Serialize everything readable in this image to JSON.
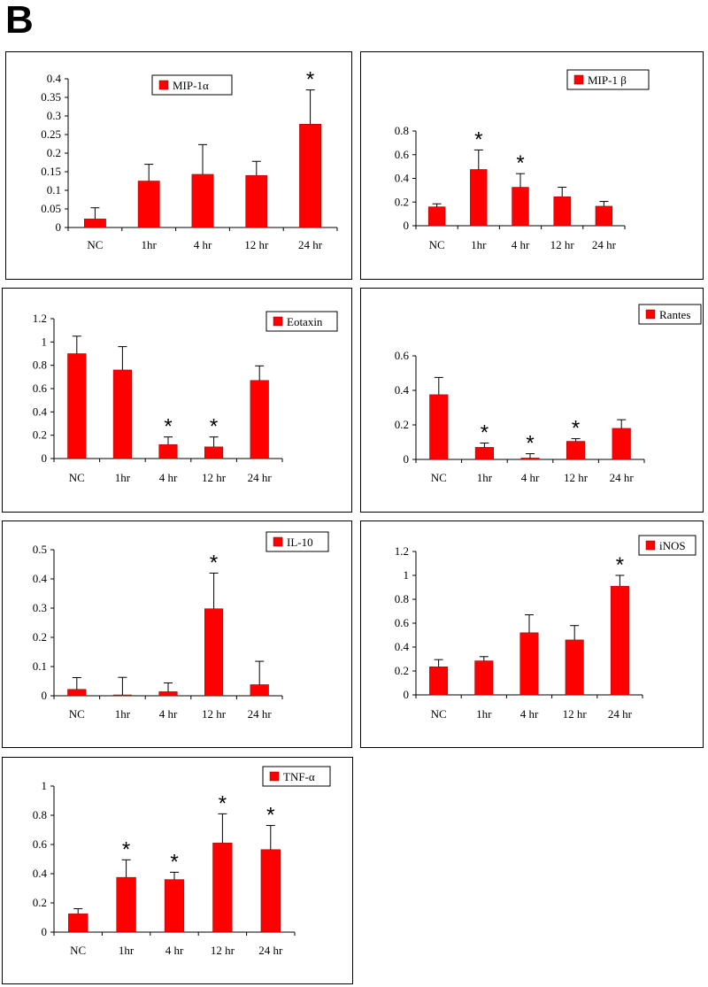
{
  "panel_label": "B",
  "colors": {
    "bar": "#ff0000",
    "bar_stroke": "#8b0000",
    "axis": "#000000"
  },
  "chart_data": [
    {
      "type": "bar",
      "legend": "MIP-1α",
      "categories": [
        "NC",
        "1hr",
        "4 hr",
        "12 hr",
        "24 hr"
      ],
      "values": [
        0.023,
        0.125,
        0.143,
        0.14,
        0.278
      ],
      "errors": [
        0.03,
        0.045,
        0.08,
        0.038,
        0.092
      ],
      "significant": [
        false,
        false,
        false,
        false,
        true
      ],
      "ylim": [
        0,
        0.4
      ],
      "yticks": [
        0,
        0.05,
        0.1,
        0.15,
        0.2,
        0.25,
        0.3,
        0.35,
        0.4
      ],
      "ytick_labels": [
        "0",
        "0.05",
        "0.1",
        "0.15",
        "0.2",
        "0.25",
        "0.3",
        "0.35",
        "0.4"
      ],
      "legend_position": "top-center"
    },
    {
      "type": "bar",
      "legend": "MIP-1 β",
      "categories": [
        "NC",
        "1hr",
        "4 hr",
        "12 hr",
        "24 hr"
      ],
      "values": [
        0.16,
        0.475,
        0.325,
        0.245,
        0.165
      ],
      "errors": [
        0.025,
        0.165,
        0.115,
        0.08,
        0.04
      ],
      "significant": [
        false,
        true,
        true,
        false,
        false
      ],
      "ylim": [
        0,
        0.8
      ],
      "yticks": [
        0,
        0.2,
        0.4,
        0.6,
        0.8
      ],
      "ytick_labels": [
        "0",
        "0.2",
        "0.4",
        "0.6",
        "0.8"
      ],
      "legend_position": "top-right"
    },
    {
      "type": "bar",
      "legend": "Eotaxin",
      "categories": [
        "NC",
        "1hr",
        "4 hr",
        "12 hr",
        "24 hr"
      ],
      "values": [
        0.9,
        0.76,
        0.12,
        0.1,
        0.67
      ],
      "errors": [
        0.15,
        0.2,
        0.065,
        0.085,
        0.125
      ],
      "significant": [
        false,
        false,
        true,
        true,
        false
      ],
      "ylim": [
        0,
        1.2
      ],
      "yticks": [
        0,
        0.2,
        0.4,
        0.6,
        0.8,
        1,
        1.2
      ],
      "ytick_labels": [
        "0",
        "0.2",
        "0.4",
        "0.6",
        "0.8",
        "1",
        "1.2"
      ],
      "legend_position": "top-right"
    },
    {
      "type": "bar",
      "legend": "Rantes",
      "categories": [
        "NC",
        "1hr",
        "4 hr",
        "12 hr",
        "24 hr"
      ],
      "values": [
        0.375,
        0.07,
        0.008,
        0.105,
        0.18
      ],
      "errors": [
        0.1,
        0.025,
        0.025,
        0.015,
        0.05
      ],
      "significant": [
        false,
        true,
        true,
        true,
        false
      ],
      "ylim": [
        0,
        0.6
      ],
      "yticks": [
        0,
        0.2,
        0.4,
        0.6
      ],
      "ytick_labels": [
        "0",
        "0.2",
        "0.4",
        "0.6"
      ],
      "legend_position": "top-right"
    },
    {
      "type": "bar",
      "legend": "IL-10",
      "categories": [
        "NC",
        "1hr",
        "4 hr",
        "12 hr",
        "24 hr"
      ],
      "values": [
        0.022,
        0.003,
        0.014,
        0.298,
        0.038
      ],
      "errors": [
        0.04,
        0.06,
        0.03,
        0.122,
        0.08
      ],
      "significant": [
        false,
        false,
        false,
        true,
        false
      ],
      "ylim": [
        0,
        0.5
      ],
      "yticks": [
        0,
        0.1,
        0.2,
        0.3,
        0.4,
        0.5
      ],
      "ytick_labels": [
        "0",
        "0.1",
        "0.2",
        "0.3",
        "0.4",
        "0.5"
      ],
      "legend_position": "top-right"
    },
    {
      "type": "bar",
      "legend": "iNOS",
      "categories": [
        "NC",
        "1hr",
        "4 hr",
        "12 hr",
        "24 hr"
      ],
      "values": [
        0.235,
        0.285,
        0.52,
        0.46,
        0.91
      ],
      "errors": [
        0.06,
        0.035,
        0.15,
        0.12,
        0.09
      ],
      "significant": [
        false,
        false,
        false,
        false,
        true
      ],
      "ylim": [
        0,
        1.2
      ],
      "yticks": [
        0,
        0.2,
        0.4,
        0.6,
        0.8,
        1,
        1.2
      ],
      "ytick_labels": [
        "0",
        "0.2",
        "0.4",
        "0.6",
        "0.8",
        "1",
        "1.2"
      ],
      "legend_position": "top-right"
    },
    {
      "type": "bar",
      "legend": "TNF-α",
      "categories": [
        "NC",
        "1hr",
        "4 hr",
        "12 hr",
        "24 hr"
      ],
      "values": [
        0.125,
        0.375,
        0.36,
        0.61,
        0.565
      ],
      "errors": [
        0.035,
        0.12,
        0.05,
        0.2,
        0.165
      ],
      "significant": [
        false,
        true,
        true,
        true,
        true
      ],
      "ylim": [
        0,
        1
      ],
      "yticks": [
        0,
        0.2,
        0.4,
        0.6,
        0.8,
        1
      ],
      "ytick_labels": [
        "0",
        "0.2",
        "0.4",
        "0.6",
        "0.8",
        "1"
      ],
      "legend_position": "top-right"
    }
  ]
}
